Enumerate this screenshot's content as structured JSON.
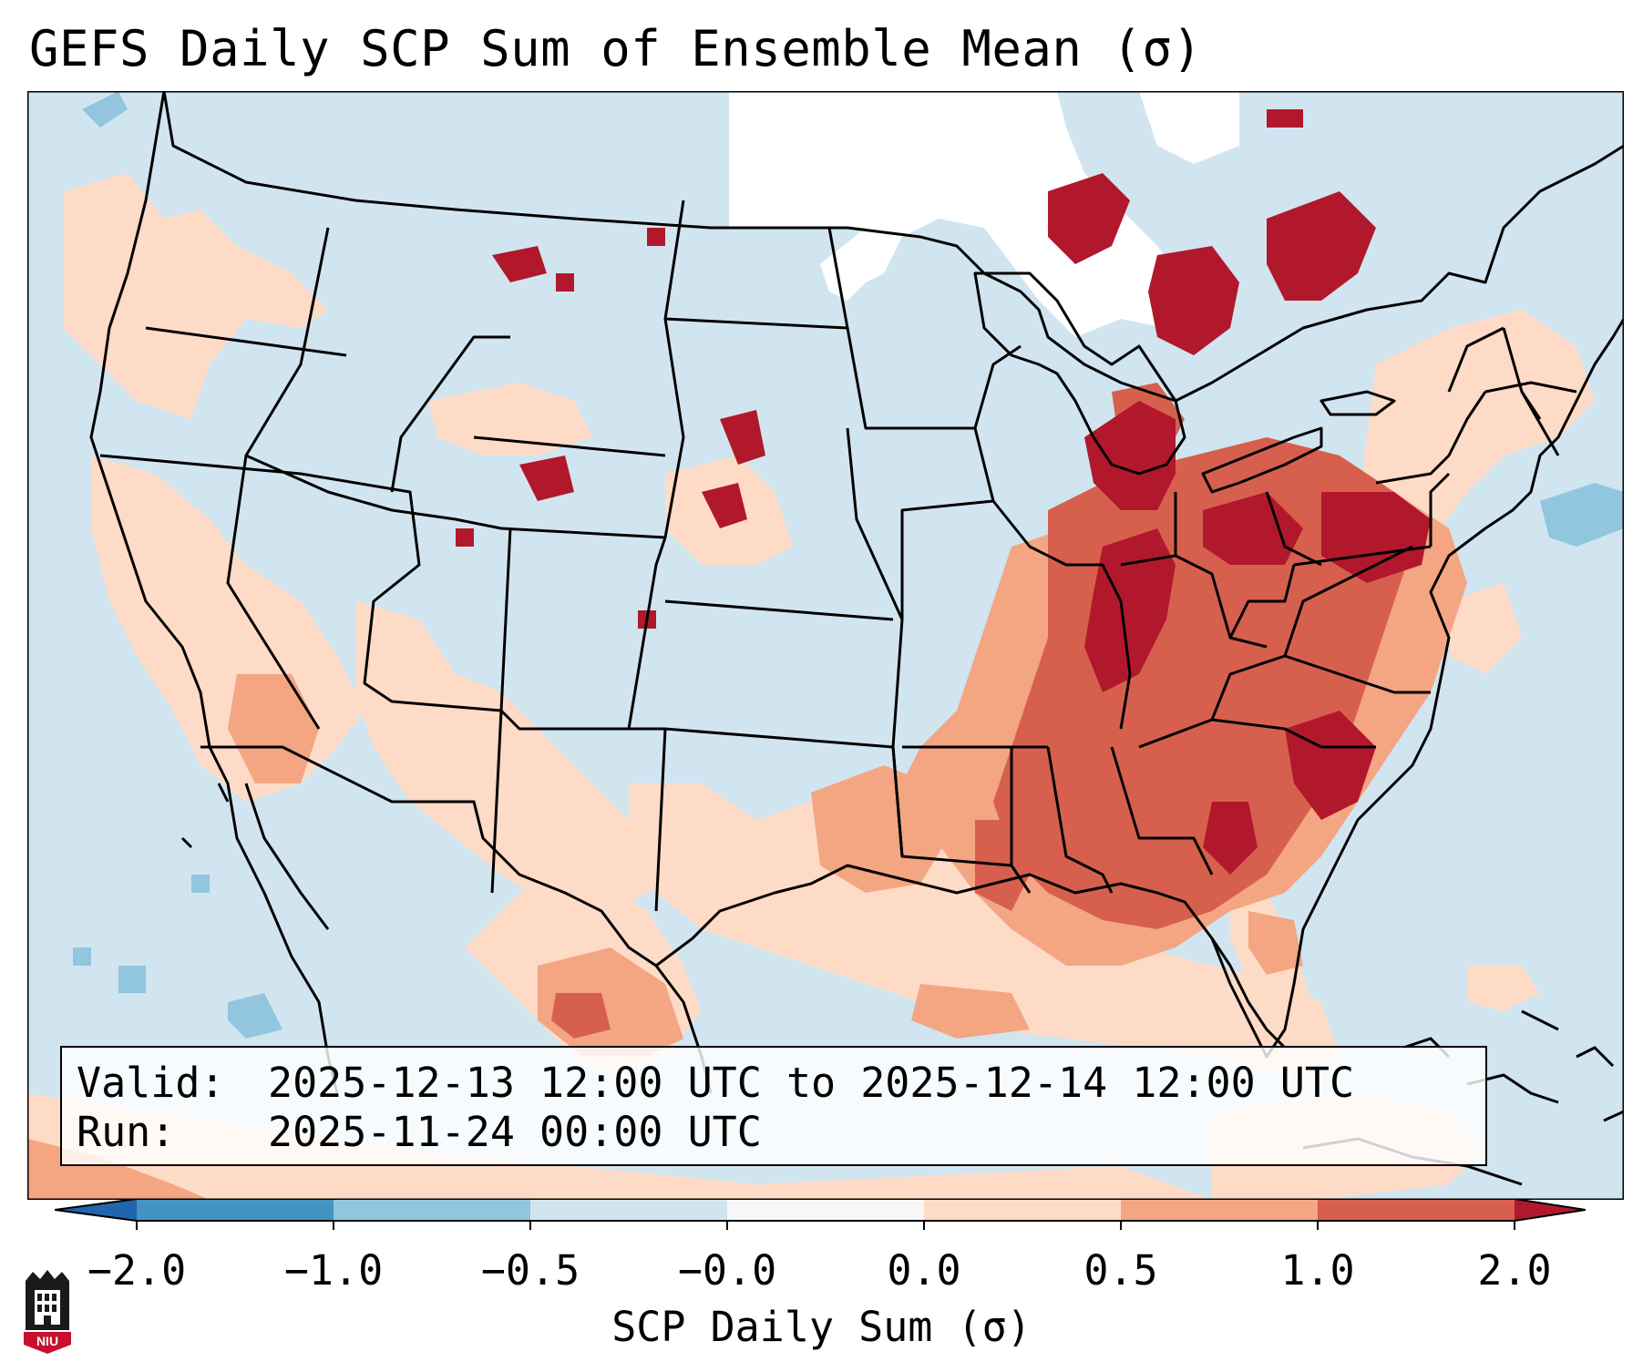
{
  "title": "GEFS Daily SCP Sum of Ensemble Mean (σ)",
  "valid": {
    "label": "Valid:",
    "value": "2025-12-13 12:00 UTC to 2025-12-14 12:00 UTC"
  },
  "run": {
    "label": "Run:",
    "value": "2025-11-24 00:00 UTC"
  },
  "colorbar": {
    "label": "SCP Daily Sum (σ)",
    "ticks": [
      "−2.0",
      "−1.0",
      "−0.5",
      "−0.0",
      "0.0",
      "0.5",
      "1.0",
      "2.0"
    ],
    "colors": [
      "#2166ac",
      "#4393c3",
      "#92c5de",
      "#d1e5f0",
      "#f7f7f7",
      "#fddbc7",
      "#f4a582",
      "#d6604d",
      "#b2182b"
    ]
  },
  "map": {
    "background_color": "#d1e5f0",
    "no_data_color": "#ffffff",
    "heavy_color": "#b2182b",
    "moderate_color": "#d6604d",
    "light_color": "#f4a582",
    "weak_color": "#fddbc7"
  },
  "logo": {
    "text": "NIU",
    "color": "#c8102e"
  }
}
